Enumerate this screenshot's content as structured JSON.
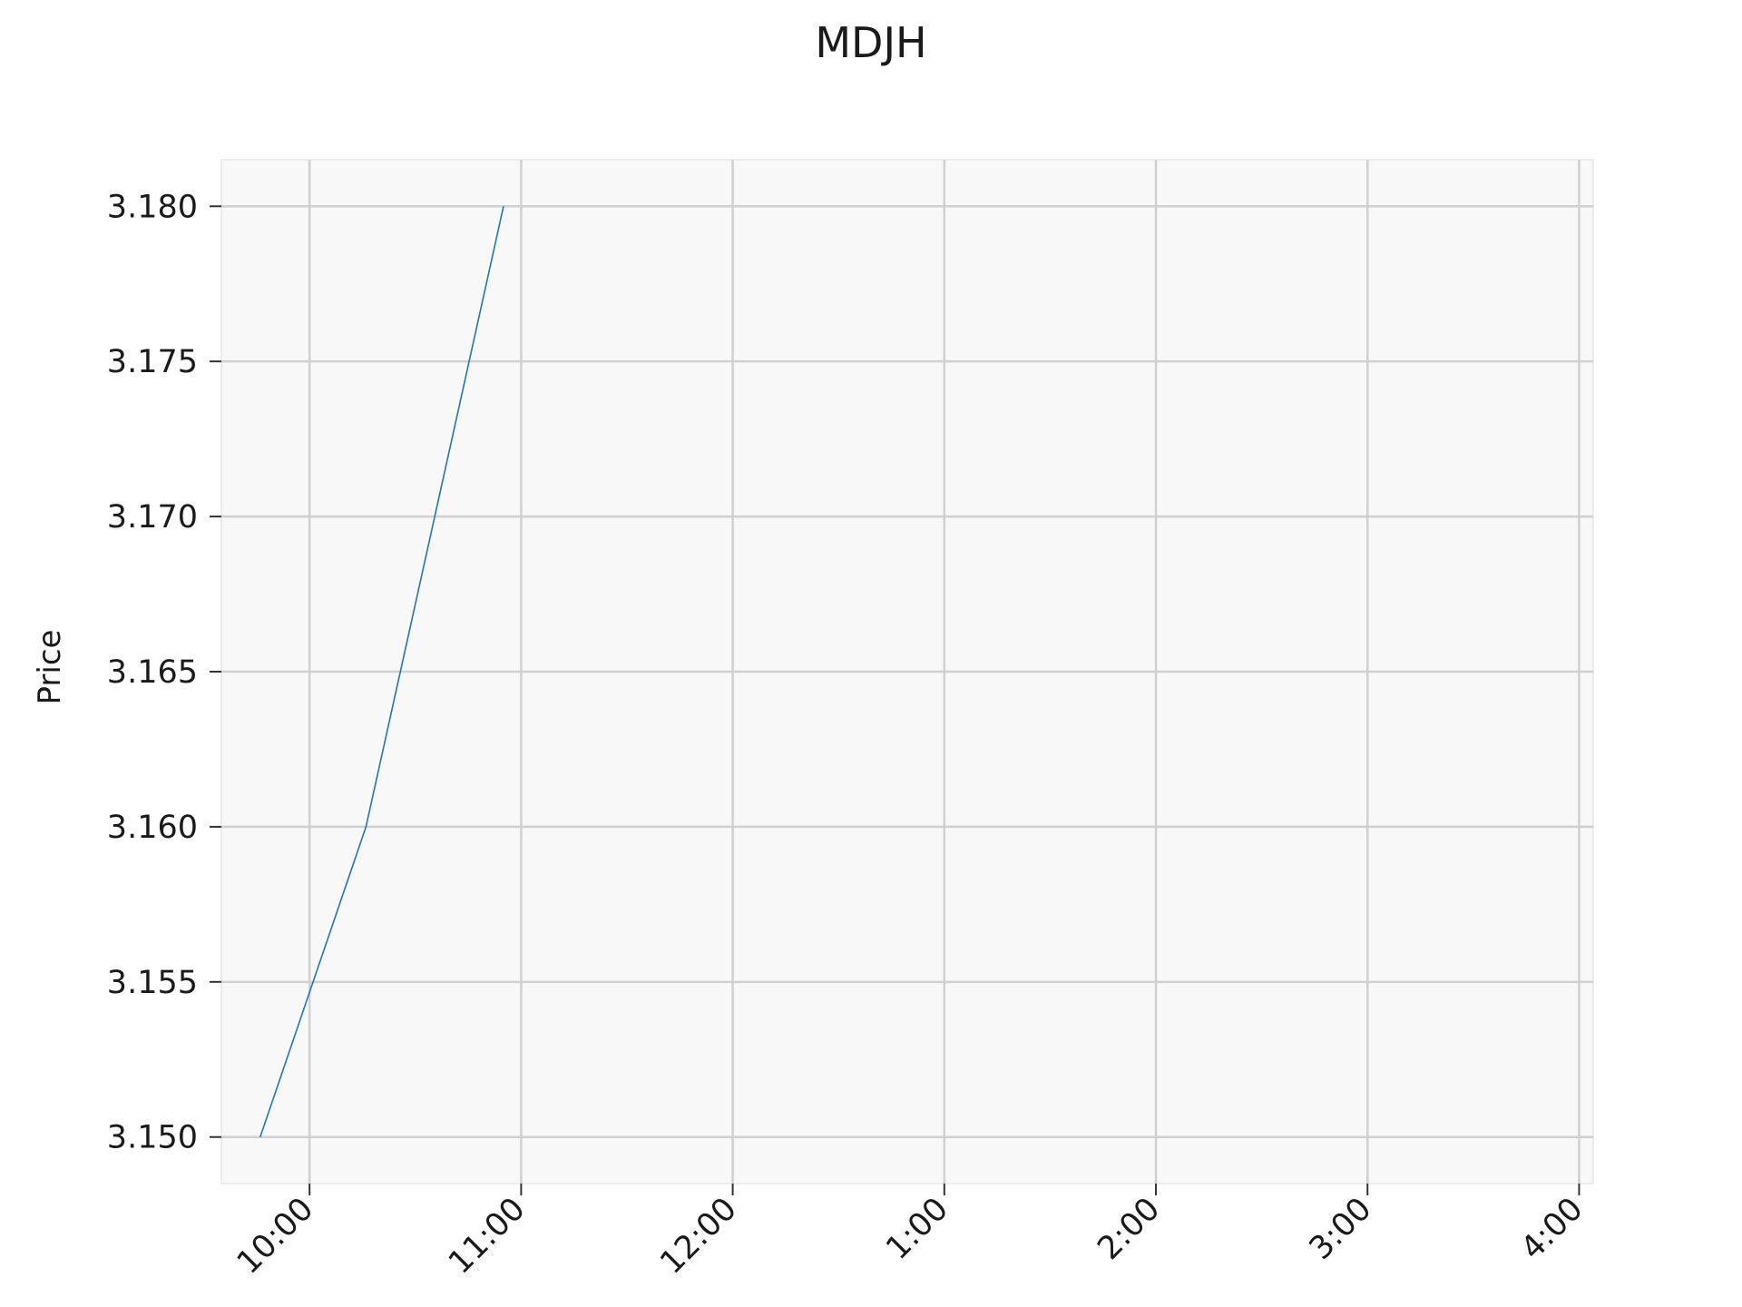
{
  "chart_data": {
    "type": "line",
    "title": "MDJH",
    "xlabel": "",
    "ylabel": "Price",
    "x_ticks": [
      "10:00",
      "11:00",
      "12:00",
      "1:00",
      "2:00",
      "3:00",
      "4:00"
    ],
    "y_ticks": [
      "3.150",
      "3.155",
      "3.160",
      "3.165",
      "3.170",
      "3.175",
      "3.180"
    ],
    "ylim": [
      3.1485,
      3.1815
    ],
    "xlim": [
      "09:35",
      "16:04"
    ],
    "grid": true,
    "series": [
      {
        "x": [
          "09:46",
          "10:16",
          "10:55"
        ],
        "values": [
          3.15,
          3.16,
          3.18
        ]
      }
    ],
    "line_color": "#1f77b4",
    "plot_background": "#f8f8f8",
    "grid_color": "#d0d0d0"
  }
}
